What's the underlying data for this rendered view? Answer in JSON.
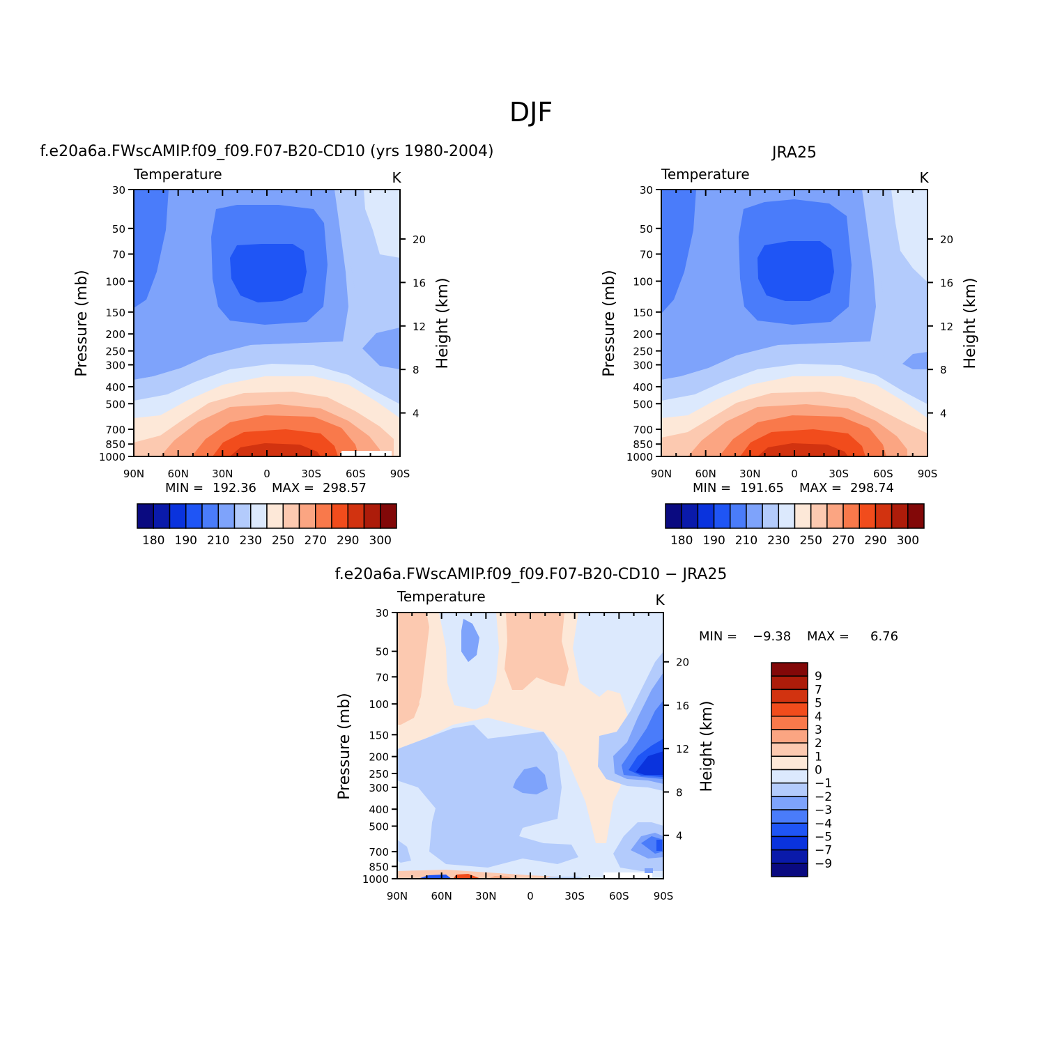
{
  "figure": {
    "title": "DJF"
  },
  "chart_data": [
    {
      "type": "heatmap",
      "id": "model",
      "title": "f.e20a6a.FWscAMIP.f09_f09.F07-B20-CD10 (yrs 1980-2004)",
      "subtitle_left": "Temperature",
      "subtitle_right": "K",
      "ylabel": "Pressure (mb)",
      "ylabel2": "Height (km)",
      "xticks": [
        "90N",
        "60N",
        "30N",
        "0",
        "30S",
        "60S",
        "90S"
      ],
      "yticks": [
        "30",
        "50",
        "70",
        "100",
        "150",
        "200",
        "250",
        "300",
        "400",
        "500",
        "700",
        "850",
        "1000"
      ],
      "yticks2": [
        "20",
        "16",
        "12",
        "8",
        "4"
      ],
      "min_label": "MIN =",
      "min_value": "192.36",
      "max_label": "MAX =",
      "max_value": "298.57",
      "colorbar_labels": [
        "180",
        "190",
        "210",
        "230",
        "250",
        "270",
        "290",
        "300"
      ]
    },
    {
      "type": "heatmap",
      "id": "obs",
      "title": "JRA25",
      "subtitle_left": "Temperature",
      "subtitle_right": "K",
      "ylabel": "Pressure (mb)",
      "ylabel2": "Height (km)",
      "xticks": [
        "90N",
        "60N",
        "30N",
        "0",
        "30S",
        "60S",
        "90S"
      ],
      "yticks": [
        "30",
        "50",
        "70",
        "100",
        "150",
        "200",
        "250",
        "300",
        "400",
        "500",
        "700",
        "850",
        "1000"
      ],
      "yticks2": [
        "20",
        "16",
        "12",
        "8",
        "4"
      ],
      "min_label": "MIN =",
      "min_value": "191.65",
      "max_label": "MAX =",
      "max_value": "298.74",
      "colorbar_labels": [
        "180",
        "190",
        "210",
        "230",
        "250",
        "270",
        "290",
        "300"
      ]
    },
    {
      "type": "heatmap",
      "id": "diff",
      "title": "f.e20a6a.FWscAMIP.f09_f09.F07-B20-CD10 − JRA25",
      "subtitle_left": "Temperature",
      "subtitle_right": "K",
      "ylabel": "Pressure (mb)",
      "ylabel2": "Height (km)",
      "xticks": [
        "90N",
        "60N",
        "30N",
        "0",
        "30S",
        "60S",
        "90S"
      ],
      "yticks": [
        "30",
        "50",
        "70",
        "100",
        "150",
        "200",
        "250",
        "300",
        "400",
        "500",
        "700",
        "850",
        "1000"
      ],
      "yticks2": [
        "20",
        "16",
        "12",
        "8",
        "4"
      ],
      "min_label": "MIN =",
      "min_value": "−9.38",
      "max_label": "MAX =",
      "max_value": "6.76",
      "colorbar_labels": [
        "9",
        "7",
        "5",
        "4",
        "3",
        "2",
        "1",
        "0",
        "−1",
        "−2",
        "−3",
        "−4",
        "−5",
        "−7",
        "−9"
      ]
    }
  ],
  "palette": {
    "abs": [
      "#0a0a80",
      "#0a1aaa",
      "#0a33dd",
      "#1f55f5",
      "#4a7cfa",
      "#7ea3fb",
      "#b3cbfc",
      "#dce9fd",
      "#fde8d8",
      "#fcc9b0",
      "#fba582",
      "#f9794b",
      "#f14c1c",
      "#d23310",
      "#ad1c0a",
      "#820808"
    ],
    "diff": [
      "#820808",
      "#ad1c0a",
      "#d23310",
      "#f14c1c",
      "#f9794b",
      "#fba582",
      "#fcc9b0",
      "#fde8d8",
      "#dce9fd",
      "#b3cbfc",
      "#7ea3fb",
      "#4a7cfa",
      "#1f55f5",
      "#0a33dd",
      "#0a1aaa",
      "#0a0a80"
    ]
  }
}
